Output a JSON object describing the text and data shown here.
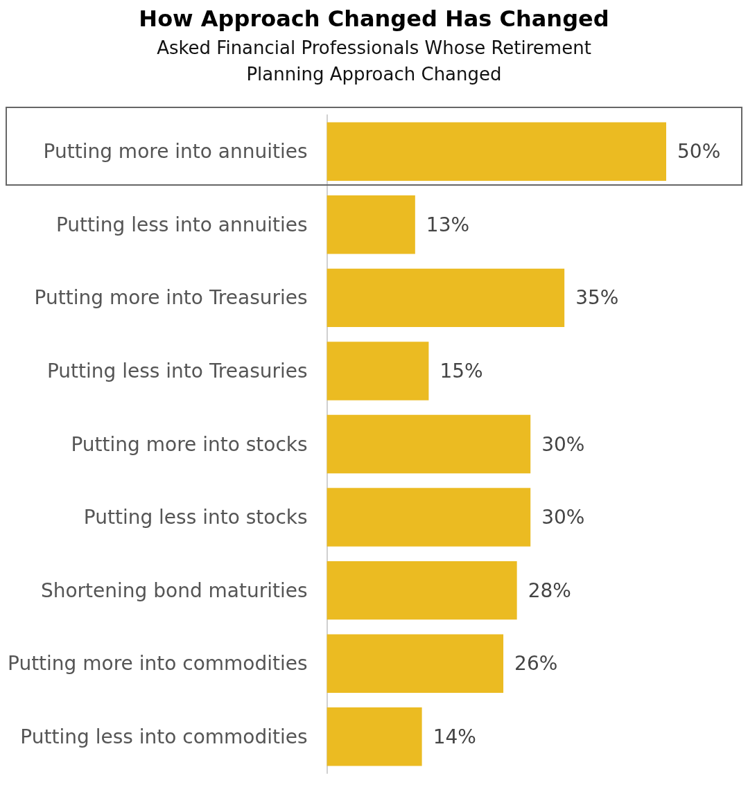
{
  "chart_data": {
    "type": "bar",
    "orientation": "horizontal",
    "title": "How Approach Changed Has Changed",
    "subtitle": "Asked Financial Professionals Whose Retirement Planning Approach Changed",
    "categories": [
      "Putting more into annuities",
      "Putting less into annuities",
      "Putting more into Treasuries",
      "Putting less into Treasuries",
      "Putting more into stocks",
      "Putting less into stocks",
      "Shortening bond maturities",
      "Putting more into commodities",
      "Putting less into commodities"
    ],
    "values": [
      50,
      13,
      35,
      15,
      30,
      30,
      28,
      26,
      14
    ],
    "value_labels": [
      "50%",
      "13%",
      "35%",
      "15%",
      "30%",
      "30%",
      "28%",
      "26%",
      "14%"
    ],
    "color": "#ebbb22"
  }
}
